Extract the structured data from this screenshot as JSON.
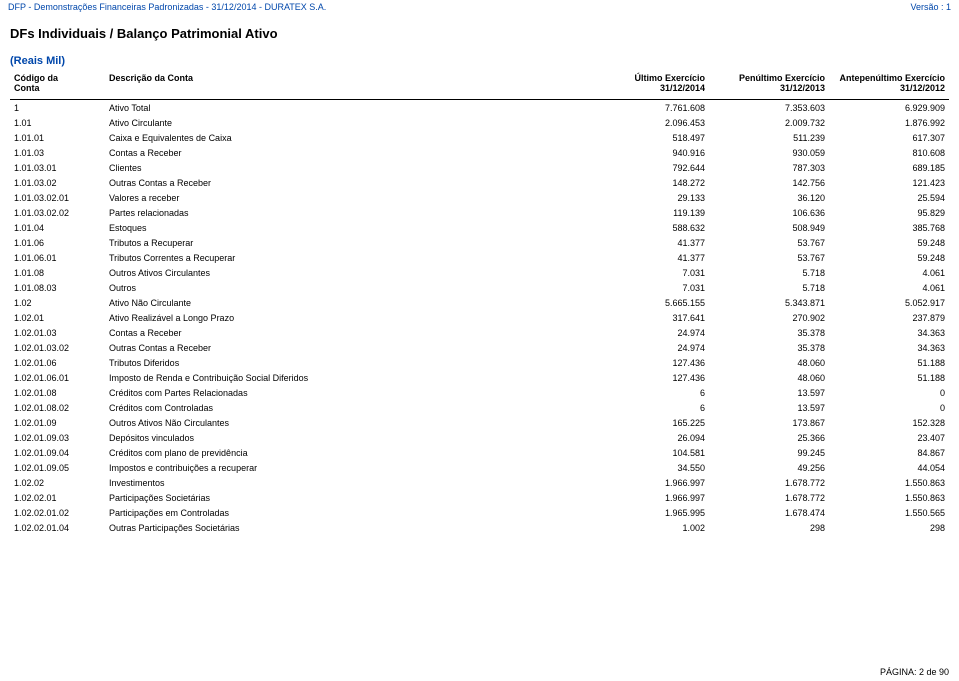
{
  "header": {
    "doc_title": "DFP - Demonstrações Financeiras Padronizadas - 31/12/2014 - DURATEX S.A.",
    "version": "Versão : 1"
  },
  "page_title": "DFs Individuais / Balanço Patrimonial Ativo",
  "subtitle": "(Reais Mil)",
  "columns": {
    "codigo_line1": "Código da",
    "codigo_line2": "Conta",
    "descricao": "Descrição da Conta",
    "ultimo_line1": "Último Exercício",
    "ultimo_line2": "31/12/2014",
    "penultimo_line1": "Penúltimo Exercício",
    "penultimo_line2": "31/12/2013",
    "antepenultimo_line1": "Antepenúltimo Exercício",
    "antepenultimo_line2": "31/12/2012"
  },
  "rows": [
    {
      "codigo": "1",
      "descricao": "Ativo Total",
      "v1": "7.761.608",
      "v2": "7.353.603",
      "v3": "6.929.909"
    },
    {
      "codigo": "1.01",
      "descricao": "Ativo Circulante",
      "v1": "2.096.453",
      "v2": "2.009.732",
      "v3": "1.876.992"
    },
    {
      "codigo": "1.01.01",
      "descricao": "Caixa e Equivalentes de Caixa",
      "v1": "518.497",
      "v2": "511.239",
      "v3": "617.307"
    },
    {
      "codigo": "1.01.03",
      "descricao": "Contas a Receber",
      "v1": "940.916",
      "v2": "930.059",
      "v3": "810.608"
    },
    {
      "codigo": "1.01.03.01",
      "descricao": "Clientes",
      "v1": "792.644",
      "v2": "787.303",
      "v3": "689.185"
    },
    {
      "codigo": "1.01.03.02",
      "descricao": "Outras Contas a Receber",
      "v1": "148.272",
      "v2": "142.756",
      "v3": "121.423"
    },
    {
      "codigo": "1.01.03.02.01",
      "descricao": "Valores a receber",
      "v1": "29.133",
      "v2": "36.120",
      "v3": "25.594"
    },
    {
      "codigo": "1.01.03.02.02",
      "descricao": "Partes relacionadas",
      "v1": "119.139",
      "v2": "106.636",
      "v3": "95.829"
    },
    {
      "codigo": "1.01.04",
      "descricao": "Estoques",
      "v1": "588.632",
      "v2": "508.949",
      "v3": "385.768"
    },
    {
      "codigo": "1.01.06",
      "descricao": "Tributos a Recuperar",
      "v1": "41.377",
      "v2": "53.767",
      "v3": "59.248"
    },
    {
      "codigo": "1.01.06.01",
      "descricao": "Tributos Correntes a Recuperar",
      "v1": "41.377",
      "v2": "53.767",
      "v3": "59.248"
    },
    {
      "codigo": "1.01.08",
      "descricao": "Outros Ativos Circulantes",
      "v1": "7.031",
      "v2": "5.718",
      "v3": "4.061"
    },
    {
      "codigo": "1.01.08.03",
      "descricao": "Outros",
      "v1": "7.031",
      "v2": "5.718",
      "v3": "4.061"
    },
    {
      "codigo": "1.02",
      "descricao": "Ativo Não Circulante",
      "v1": "5.665.155",
      "v2": "5.343.871",
      "v3": "5.052.917"
    },
    {
      "codigo": "1.02.01",
      "descricao": "Ativo Realizável a Longo Prazo",
      "v1": "317.641",
      "v2": "270.902",
      "v3": "237.879"
    },
    {
      "codigo": "1.02.01.03",
      "descricao": "Contas a Receber",
      "v1": "24.974",
      "v2": "35.378",
      "v3": "34.363"
    },
    {
      "codigo": "1.02.01.03.02",
      "descricao": "Outras Contas a Receber",
      "v1": "24.974",
      "v2": "35.378",
      "v3": "34.363"
    },
    {
      "codigo": "1.02.01.06",
      "descricao": "Tributos Diferidos",
      "v1": "127.436",
      "v2": "48.060",
      "v3": "51.188"
    },
    {
      "codigo": "1.02.01.06.01",
      "descricao": "Imposto de Renda e Contribuição Social Diferidos",
      "v1": "127.436",
      "v2": "48.060",
      "v3": "51.188"
    },
    {
      "codigo": "1.02.01.08",
      "descricao": "Créditos com Partes Relacionadas",
      "v1": "6",
      "v2": "13.597",
      "v3": "0"
    },
    {
      "codigo": "1.02.01.08.02",
      "descricao": "Créditos com Controladas",
      "v1": "6",
      "v2": "13.597",
      "v3": "0"
    },
    {
      "codigo": "1.02.01.09",
      "descricao": "Outros Ativos Não Circulantes",
      "v1": "165.225",
      "v2": "173.867",
      "v3": "152.328"
    },
    {
      "codigo": "1.02.01.09.03",
      "descricao": "Depósitos vinculados",
      "v1": "26.094",
      "v2": "25.366",
      "v3": "23.407"
    },
    {
      "codigo": "1.02.01.09.04",
      "descricao": "Créditos com plano de previdência",
      "v1": "104.581",
      "v2": "99.245",
      "v3": "84.867"
    },
    {
      "codigo": "1.02.01.09.05",
      "descricao": "Impostos e contribuições a recuperar",
      "v1": "34.550",
      "v2": "49.256",
      "v3": "44.054"
    },
    {
      "codigo": "1.02.02",
      "descricao": "Investimentos",
      "v1": "1.966.997",
      "v2": "1.678.772",
      "v3": "1.550.863"
    },
    {
      "codigo": "1.02.02.01",
      "descricao": "Participações Societárias",
      "v1": "1.966.997",
      "v2": "1.678.772",
      "v3": "1.550.863"
    },
    {
      "codigo": "1.02.02.01.02",
      "descricao": "Participações em Controladas",
      "v1": "1.965.995",
      "v2": "1.678.474",
      "v3": "1.550.565"
    },
    {
      "codigo": "1.02.02.01.04",
      "descricao": "Outras Participações Societárias",
      "v1": "1.002",
      "v2": "298",
      "v3": "298"
    }
  ],
  "footer": {
    "page_label": "PÁGINA: 2 de 90"
  }
}
